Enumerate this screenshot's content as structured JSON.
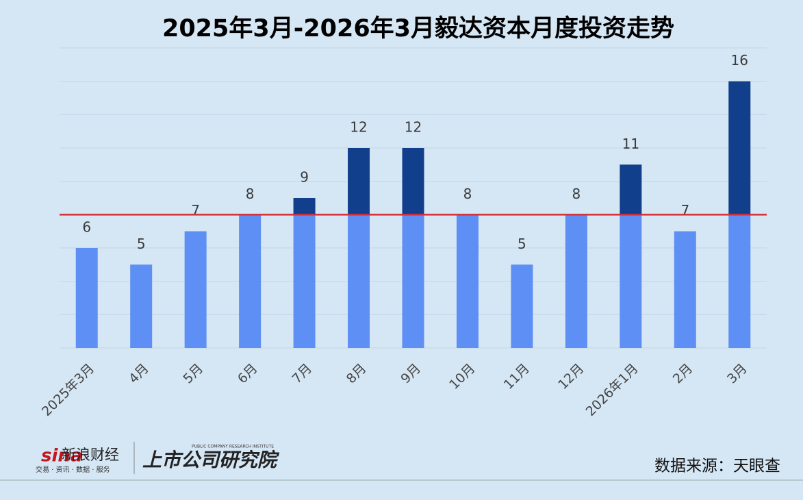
{
  "chart_data": {
    "type": "bar",
    "title": "2025年3月-2026年3月毅达资本月度投资走势",
    "categories": [
      "2025年3月",
      "4月",
      "5月",
      "6月",
      "7月",
      "8月",
      "9月",
      "10月",
      "11月",
      "12月",
      "2026年1月",
      "2月",
      "3月"
    ],
    "values": [
      6,
      5,
      7,
      8,
      9,
      12,
      12,
      8,
      5,
      8,
      11,
      7,
      16
    ],
    "color": "#5e8ff5",
    "above_color": "#123f8c",
    "reference_line": {
      "value": 8,
      "color": "#d62c35"
    },
    "ylim": [
      0,
      18
    ],
    "yticks": [
      0,
      2,
      4,
      6,
      8,
      10,
      12,
      14,
      16,
      18
    ],
    "grid": true
  },
  "footer": {
    "logo": "sina",
    "brand": "新浪财经",
    "brand_sub": "交易 · 资讯 · 数据 · 服务",
    "institute": "上市公司研究院",
    "institute_en": "PUBLIC COMPANY RESEARCH INSTITUTE",
    "source": "数据来源：天眼查"
  }
}
